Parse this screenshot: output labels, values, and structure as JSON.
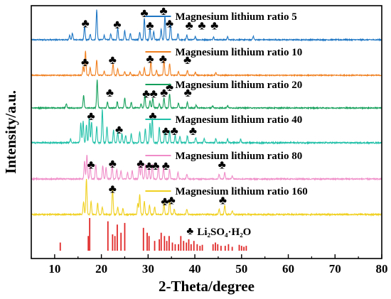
{
  "chart_data": {
    "type": "line",
    "title": "",
    "xlabel": "2-Theta/degree",
    "ylabel": "Intensity/a.u.",
    "xlim": [
      5,
      80
    ],
    "x_ticks": [
      10,
      20,
      30,
      40,
      50,
      60,
      70,
      80
    ],
    "x_tick_labels": [
      "10",
      "20",
      "30",
      "40",
      "50",
      "60",
      "70",
      "80"
    ],
    "legend_placement": "right of each trace",
    "peak_marker_glyph": "♣",
    "series": [
      {
        "name": "Magnesium lithium ratio 5",
        "color": "#1f77c4",
        "label_pos": [
          35.8,
          0.93
        ],
        "peaks": [
          [
            13.2,
            0.15
          ],
          [
            13.8,
            0.22
          ],
          [
            16.4,
            0.45
          ],
          [
            17.6,
            0.18
          ],
          [
            19.0,
            1.0
          ],
          [
            20.6,
            0.15
          ],
          [
            22.0,
            0.2
          ],
          [
            23.5,
            0.4
          ],
          [
            25.0,
            0.3
          ],
          [
            26.2,
            0.22
          ],
          [
            28.2,
            0.25
          ],
          [
            29.2,
            0.72
          ],
          [
            30.4,
            0.38
          ],
          [
            31.2,
            0.28
          ],
          [
            32.8,
            0.35
          ],
          [
            33.6,
            0.8
          ],
          [
            34.8,
            0.55
          ],
          [
            36.4,
            0.2
          ],
          [
            38.3,
            0.15
          ],
          [
            40.1,
            0.12
          ],
          [
            44.0,
            0.1
          ],
          [
            47.0,
            0.1
          ],
          [
            52.5,
            0.12
          ]
        ],
        "markers": [
          [
            16.6,
            6
          ],
          [
            23.4,
            5
          ],
          [
            29.2,
            15
          ],
          [
            30.4,
            4
          ],
          [
            33.3,
            17
          ],
          [
            34.6,
            6
          ],
          [
            38.8,
            4
          ],
          [
            41.5,
            4
          ],
          [
            44.2,
            4
          ]
        ]
      },
      {
        "name": "Magnesium lithium ratio 10",
        "color": "#f08020",
        "label_pos": [
          35.8,
          0.8
        ],
        "peaks": [
          [
            16.1,
            0.35
          ],
          [
            16.6,
            0.95
          ],
          [
            17.6,
            0.3
          ],
          [
            19.0,
            0.6
          ],
          [
            20.6,
            0.15
          ],
          [
            22.5,
            0.45
          ],
          [
            23.5,
            0.25
          ],
          [
            25.0,
            0.15
          ],
          [
            26.2,
            0.12
          ],
          [
            28.2,
            0.15
          ],
          [
            29.2,
            0.3
          ],
          [
            30.6,
            0.55
          ],
          [
            31.8,
            0.2
          ],
          [
            33.4,
            0.6
          ],
          [
            34.6,
            0.45
          ],
          [
            36.5,
            0.15
          ],
          [
            38.4,
            0.2
          ],
          [
            40.1,
            0.12
          ],
          [
            44.5,
            0.1
          ]
        ],
        "markers": [
          [
            16.5,
            3
          ],
          [
            22.4,
            5
          ],
          [
            30.4,
            6
          ],
          [
            33.2,
            6
          ],
          [
            38.4,
            5
          ]
        ]
      },
      {
        "name": "Magnesium lithium ratio 20",
        "color": "#14a05a",
        "label_pos": [
          35.8,
          0.67
        ],
        "peaks": [
          [
            12.5,
            0.15
          ],
          [
            16.2,
            0.45
          ],
          [
            19.1,
            1.0
          ],
          [
            21.3,
            0.2
          ],
          [
            23.4,
            0.22
          ],
          [
            25.0,
            0.35
          ],
          [
            26.4,
            0.2
          ],
          [
            28.5,
            0.15
          ],
          [
            29.3,
            0.45
          ],
          [
            30.4,
            0.25
          ],
          [
            31.0,
            0.35
          ],
          [
            32.4,
            0.15
          ],
          [
            33.4,
            0.35
          ],
          [
            34.6,
            0.5
          ],
          [
            36.5,
            0.18
          ],
          [
            38.4,
            0.2
          ],
          [
            40.3,
            0.1
          ],
          [
            43.8,
            0.08
          ],
          [
            47.0,
            0.08
          ]
        ],
        "markers": [
          [
            21.8,
            5
          ],
          [
            29.6,
            4
          ],
          [
            31.2,
            4
          ],
          [
            33.4,
            5
          ],
          [
            34.6,
            10
          ],
          [
            38.5,
            5
          ]
        ]
      },
      {
        "name": "Magnesium lithium ratio 40",
        "color": "#20c0a8",
        "label_pos": [
          35.8,
          0.55
        ],
        "peaks": [
          [
            13.4,
            0.1
          ],
          [
            15.6,
            0.55
          ],
          [
            16.1,
            0.6
          ],
          [
            16.8,
            0.5
          ],
          [
            17.4,
            0.7
          ],
          [
            17.9,
            0.6
          ],
          [
            19.0,
            0.45
          ],
          [
            20.2,
            0.95
          ],
          [
            21.2,
            0.45
          ],
          [
            22.6,
            0.35
          ],
          [
            23.5,
            0.3
          ],
          [
            24.4,
            0.25
          ],
          [
            25.2,
            0.2
          ],
          [
            26.4,
            0.25
          ],
          [
            28.2,
            0.3
          ],
          [
            29.4,
            0.4
          ],
          [
            30.4,
            0.55
          ],
          [
            30.9,
            0.7
          ],
          [
            32.4,
            0.45
          ],
          [
            33.6,
            0.38
          ],
          [
            34.6,
            0.32
          ],
          [
            35.8,
            0.2
          ],
          [
            36.8,
            0.18
          ],
          [
            38.4,
            0.2
          ],
          [
            40.2,
            0.15
          ],
          [
            42.0,
            0.12
          ],
          [
            44.5,
            0.12
          ],
          [
            47.0,
            0.1
          ],
          [
            49.8,
            0.1
          ]
        ],
        "markers": [
          [
            17.8,
            15
          ],
          [
            23.8,
            3
          ],
          [
            31.0,
            15
          ],
          [
            33.8,
            2
          ],
          [
            35.6,
            2
          ],
          [
            39.6,
            2
          ]
        ]
      },
      {
        "name": "Magnesium lithium ratio 80",
        "color": "#f08cc8",
        "label_pos": [
          35.8,
          0.42
        ],
        "peaks": [
          [
            16.4,
            0.55
          ],
          [
            16.9,
            0.75
          ],
          [
            17.6,
            0.45
          ],
          [
            18.8,
            0.45
          ],
          [
            20.3,
            0.4
          ],
          [
            21.0,
            0.35
          ],
          [
            22.3,
            0.45
          ],
          [
            23.3,
            0.3
          ],
          [
            24.2,
            0.25
          ],
          [
            25.6,
            0.2
          ],
          [
            26.6,
            0.25
          ],
          [
            28.1,
            0.5
          ],
          [
            28.6,
            0.55
          ],
          [
            29.4,
            0.45
          ],
          [
            30.2,
            0.35
          ],
          [
            30.9,
            0.45
          ],
          [
            32.2,
            0.4
          ],
          [
            33.3,
            0.35
          ],
          [
            34.6,
            0.3
          ],
          [
            36.4,
            0.2
          ],
          [
            38.3,
            0.15
          ],
          [
            45.2,
            0.15
          ],
          [
            46.4,
            0.2
          ],
          [
            48.0,
            0.1
          ]
        ],
        "markers": [
          [
            17.8,
            4
          ],
          [
            22.4,
            5
          ],
          [
            28.4,
            5
          ],
          [
            30.2,
            3
          ],
          [
            31.6,
            3
          ],
          [
            33.8,
            3
          ],
          [
            45.8,
            4
          ]
        ]
      },
      {
        "name": "Magnesium lithium ratio 160",
        "color": "#f0d020",
        "label_pos": [
          35.8,
          0.29
        ],
        "peaks": [
          [
            16.2,
            0.35
          ],
          [
            16.8,
            0.95
          ],
          [
            17.8,
            0.35
          ],
          [
            19.2,
            0.3
          ],
          [
            20.2,
            0.2
          ],
          [
            22.4,
            0.7
          ],
          [
            23.5,
            0.2
          ],
          [
            24.6,
            0.15
          ],
          [
            27.8,
            0.3
          ],
          [
            28.2,
            0.55
          ],
          [
            29.2,
            0.35
          ],
          [
            30.3,
            0.25
          ],
          [
            31.4,
            0.2
          ],
          [
            33.4,
            0.3
          ],
          [
            34.6,
            0.4
          ],
          [
            35.6,
            0.15
          ],
          [
            38.3,
            0.15
          ],
          [
            45.2,
            0.15
          ],
          [
            46.4,
            0.25
          ],
          [
            48.0,
            0.1
          ]
        ],
        "markers": [
          [
            22.4,
            14
          ],
          [
            33.6,
            3
          ],
          [
            35.0,
            4
          ],
          [
            46.0,
            4
          ]
        ]
      }
    ],
    "reference": {
      "label": "Li₂SO₄·H₂O",
      "color": "#e02828",
      "label_pos": [
        40.5,
        0.18
      ],
      "sticks": [
        [
          11.2,
          0.25
        ],
        [
          17.2,
          0.45
        ],
        [
          17.5,
          1.0
        ],
        [
          21.4,
          0.9
        ],
        [
          22.4,
          0.5
        ],
        [
          22.9,
          0.45
        ],
        [
          23.4,
          0.8
        ],
        [
          24.2,
          0.55
        ],
        [
          25.0,
          0.85
        ],
        [
          29.0,
          0.7
        ],
        [
          29.8,
          0.55
        ],
        [
          30.2,
          0.45
        ],
        [
          31.4,
          0.3
        ],
        [
          32.4,
          0.35
        ],
        [
          32.8,
          0.55
        ],
        [
          33.5,
          0.45
        ],
        [
          34.0,
          0.3
        ],
        [
          34.5,
          0.45
        ],
        [
          35.2,
          0.25
        ],
        [
          35.8,
          0.2
        ],
        [
          36.5,
          0.2
        ],
        [
          37.0,
          0.45
        ],
        [
          37.6,
          0.3
        ],
        [
          38.2,
          0.25
        ],
        [
          38.7,
          0.35
        ],
        [
          39.2,
          0.2
        ],
        [
          39.8,
          0.3
        ],
        [
          40.5,
          0.2
        ],
        [
          41.1,
          0.15
        ],
        [
          41.6,
          0.18
        ],
        [
          43.9,
          0.2
        ],
        [
          44.4,
          0.25
        ],
        [
          44.9,
          0.2
        ],
        [
          45.6,
          0.15
        ],
        [
          46.5,
          0.15
        ],
        [
          47.2,
          0.2
        ],
        [
          48.0,
          0.12
        ],
        [
          49.5,
          0.18
        ],
        [
          50.0,
          0.15
        ],
        [
          50.5,
          0.12
        ],
        [
          51.0,
          0.15
        ]
      ]
    }
  }
}
